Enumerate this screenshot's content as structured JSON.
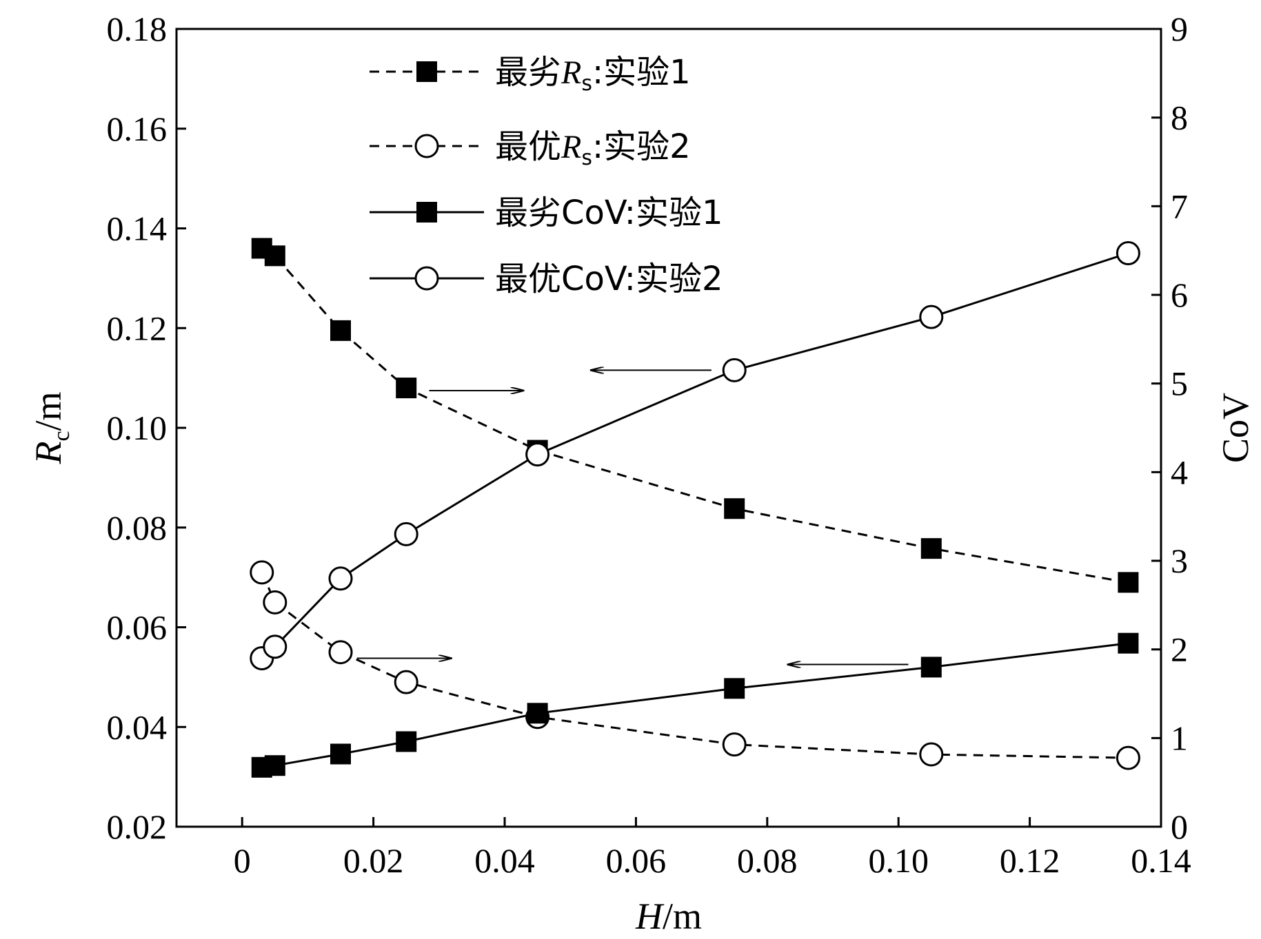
{
  "chart_data": {
    "type": "line",
    "x": [
      0.003,
      0.005,
      0.015,
      0.025,
      0.045,
      0.075,
      0.105,
      0.135
    ],
    "xlabel": {
      "var": "H",
      "unit": "/m"
    },
    "ylabel_left": {
      "var": "R",
      "sub": "c",
      "unit": "/m"
    },
    "ylabel_right": "CoV",
    "xlim": [
      -0.01,
      0.14
    ],
    "ylim_left": [
      0.02,
      0.18
    ],
    "ylim_right": [
      0,
      9
    ],
    "xticks": [
      0,
      0.02,
      0.04,
      0.06,
      0.08,
      0.1,
      0.12,
      0.14
    ],
    "xtick_labels": [
      "0",
      "0.02",
      "0.04",
      "0.06",
      "0.08",
      "0.10",
      "0.12",
      "0.14"
    ],
    "yticks_left": [
      0.02,
      0.04,
      0.06,
      0.08,
      0.1,
      0.12,
      0.14,
      0.16,
      0.18
    ],
    "ytick_labels_left": [
      "0.02",
      "0.04",
      "0.06",
      "0.08",
      "0.10",
      "0.12",
      "0.14",
      "0.16",
      "0.18"
    ],
    "yticks_right": [
      0,
      1,
      2,
      3,
      4,
      5,
      6,
      7,
      8,
      9
    ],
    "ytick_labels_right": [
      "0",
      "1",
      "2",
      "3",
      "4",
      "5",
      "6",
      "7",
      "8",
      "9"
    ],
    "series": [
      {
        "name": "最劣Rs:实验1",
        "label_pre": "最劣",
        "label_var": "R",
        "label_sub": "s",
        "label_post": ":实验1",
        "axis": "left",
        "line": "dashed",
        "marker": "square-filled",
        "values": [
          0.136,
          0.1345,
          0.1195,
          0.108,
          0.0955,
          0.0838,
          0.0758,
          0.069
        ]
      },
      {
        "name": "最优Rs:实验2",
        "label_pre": "最优",
        "label_var": "R",
        "label_sub": "s",
        "label_post": ":实验2",
        "axis": "left",
        "line": "dashed",
        "marker": "circle-open",
        "values": [
          0.071,
          0.065,
          0.055,
          0.049,
          0.042,
          0.0365,
          0.0345,
          0.0338
        ]
      },
      {
        "name": "最劣CoV:实验1",
        "label_pre": "最劣CoV:实验1",
        "axis": "right",
        "line": "solid",
        "marker": "square-filled",
        "values": [
          0.67,
          0.69,
          0.82,
          0.96,
          1.28,
          1.56,
          1.8,
          2.07
        ]
      },
      {
        "name": "最优CoV:实验2",
        "label_pre": "最优CoV:实验2",
        "axis": "right",
        "line": "solid",
        "marker": "circle-open",
        "values": [
          1.9,
          2.03,
          2.8,
          3.3,
          4.2,
          5.15,
          5.75,
          6.47
        ]
      }
    ],
    "legend_position": "top-left",
    "grid": false,
    "annotations": [
      {
        "type": "arrow",
        "direction": "right",
        "from": [
          0.0285,
          4.92
        ],
        "to": [
          0.043,
          4.92
        ]
      },
      {
        "type": "arrow",
        "direction": "left",
        "from": [
          0.0715,
          5.15
        ],
        "to": [
          0.053,
          5.15
        ]
      },
      {
        "type": "arrow",
        "direction": "right",
        "from": [
          0.0175,
          1.9
        ],
        "to": [
          0.032,
          1.9
        ]
      },
      {
        "type": "arrow",
        "direction": "left",
        "from": [
          0.1015,
          1.83
        ],
        "to": [
          0.083,
          1.83
        ]
      }
    ]
  }
}
